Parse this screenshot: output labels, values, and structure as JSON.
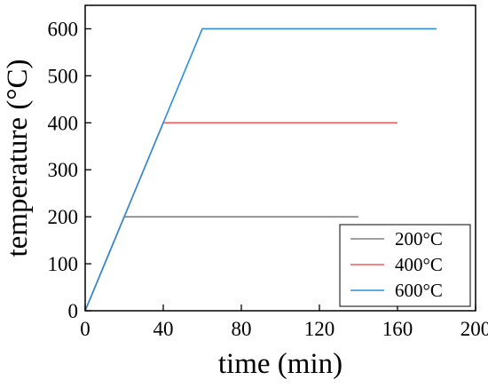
{
  "chart_data": {
    "type": "line",
    "xlabel": "time (min)",
    "ylabel": "temperature (°C)",
    "xlim": [
      0,
      200
    ],
    "ylim": [
      0,
      650
    ],
    "xticks": [
      0,
      40,
      80,
      120,
      160,
      200
    ],
    "yticks": [
      0,
      100,
      200,
      300,
      400,
      500,
      600
    ],
    "grid": false,
    "legend_position": "bottom-right",
    "series": [
      {
        "name": "200°C",
        "color": "#808080",
        "x": [
          0,
          20,
          140
        ],
        "y": [
          0,
          200,
          200
        ]
      },
      {
        "name": "400°C",
        "color": "#f05a5a",
        "x": [
          0,
          40,
          160
        ],
        "y": [
          0,
          400,
          400
        ]
      },
      {
        "name": "600°C",
        "color": "#2a8fd8",
        "x": [
          0,
          60,
          180
        ],
        "y": [
          0,
          600,
          600
        ]
      }
    ]
  }
}
